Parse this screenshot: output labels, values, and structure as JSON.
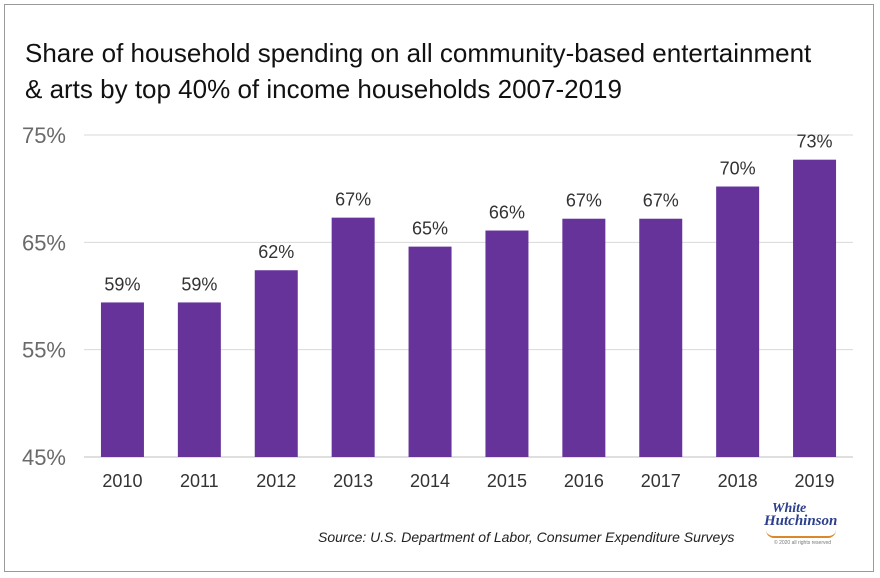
{
  "chart_data": {
    "type": "bar",
    "title": "Share of household spending on all community-based entertainment & arts by top 40% of income households 2007-2019",
    "title_line1": "Share of household spending on all community-based entertainment",
    "title_line2": "& arts by top 40% of income households 2007-2019",
    "xlabel": "",
    "ylabel": "",
    "ylim": [
      45,
      75
    ],
    "yticks": [
      45,
      55,
      65,
      75
    ],
    "ytick_labels": [
      "45%",
      "55%",
      "65%",
      "75%"
    ],
    "grid": true,
    "legend": "none",
    "bar_color": "#66339a",
    "categories": [
      "2010",
      "2011",
      "2012",
      "2013",
      "2014",
      "2015",
      "2016",
      "2017",
      "2018",
      "2019"
    ],
    "values": [
      59.4,
      59.4,
      62.4,
      67.3,
      64.6,
      66.1,
      67.2,
      67.2,
      70.2,
      72.7
    ],
    "data_labels": [
      "59%",
      "59%",
      "62%",
      "67%",
      "65%",
      "66%",
      "67%",
      "67%",
      "70%",
      "73%"
    ]
  },
  "source": "Source: U.S. Department of Labor, Consumer Expenditure Surveys",
  "logo": {
    "line1": "White",
    "line2": "Hutchinson",
    "line3": "© 2020 all rights reserved"
  }
}
